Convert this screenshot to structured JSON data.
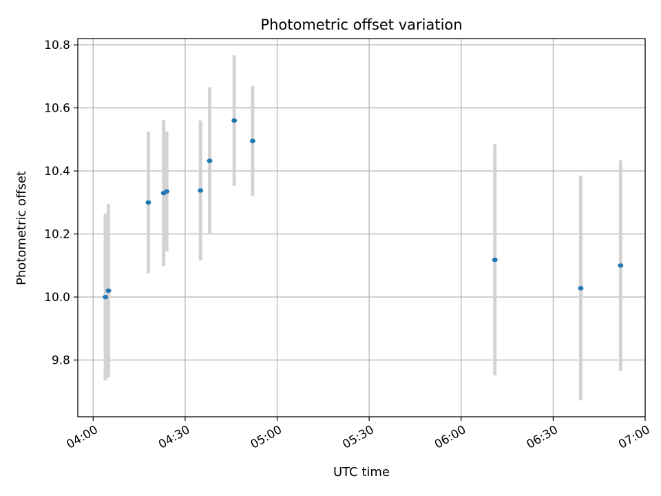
{
  "chart_data": {
    "type": "scatter",
    "title": "Photometric offset variation",
    "xlabel": "UTC time",
    "ylabel": "Photometric offset",
    "xlim": [
      "03:55",
      "07:00"
    ],
    "ylim": [
      9.62,
      10.82
    ],
    "x_ticks": [
      "04:00",
      "04:30",
      "05:00",
      "05:30",
      "06:00",
      "06:30",
      "07:00"
    ],
    "y_ticks": [
      "9.8",
      "10.0",
      "10.2",
      "10.4",
      "10.6",
      "10.8"
    ],
    "grid": true,
    "point_color": "#1f77b4",
    "errorbar_color": "#d3d3d3",
    "points": [
      {
        "t": "04:04",
        "y": 10.0,
        "err": 0.265
      },
      {
        "t": "04:05",
        "y": 10.02,
        "err": 0.275
      },
      {
        "t": "04:18",
        "y": 10.3,
        "err": 0.225
      },
      {
        "t": "04:23",
        "y": 10.33,
        "err": 0.232
      },
      {
        "t": "04:24",
        "y": 10.335,
        "err": 0.19
      },
      {
        "t": "04:35",
        "y": 10.338,
        "err": 0.222
      },
      {
        "t": "04:38",
        "y": 10.432,
        "err": 0.234
      },
      {
        "t": "04:46",
        "y": 10.56,
        "err": 0.207
      },
      {
        "t": "04:52",
        "y": 10.495,
        "err": 0.175
      },
      {
        "t": "06:11",
        "y": 10.118,
        "err": 0.367
      },
      {
        "t": "06:39",
        "y": 10.028,
        "err": 0.356
      },
      {
        "t": "06:52",
        "y": 10.1,
        "err": 0.334
      }
    ]
  }
}
